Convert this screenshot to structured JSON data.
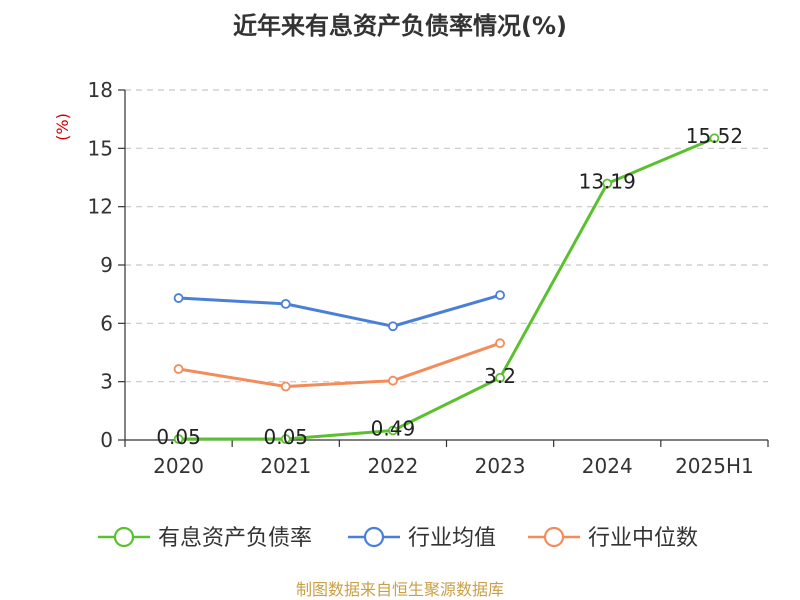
{
  "chart_data": {
    "type": "line",
    "title": "近年来有息资产负债率情况(%)",
    "unit_label": "(%)",
    "categories": [
      "2020",
      "2021",
      "2022",
      "2023",
      "2024",
      "2025H1"
    ],
    "ylim": [
      0,
      18
    ],
    "yticks": [
      "0",
      "3",
      "6",
      "9",
      "12",
      "15",
      "18"
    ],
    "grid": true,
    "legend_position": "bottom",
    "series": [
      {
        "name": "有息资产负债率",
        "color": "#5ac12e",
        "values": [
          0.05,
          0.05,
          0.49,
          3.2,
          13.19,
          15.52
        ],
        "labels": [
          "0.05",
          "0.05",
          "0.49",
          "3.2",
          "13.19",
          "15.52"
        ]
      },
      {
        "name": "行业均值",
        "color": "#4a7fd8",
        "values": [
          7.3,
          7.0,
          5.85,
          7.45,
          null,
          null
        ]
      },
      {
        "name": "行业中位数",
        "color": "#f28c5a",
        "values": [
          3.65,
          2.75,
          3.05,
          4.98,
          null,
          null
        ]
      }
    ]
  },
  "source": "制图数据来自恒生聚源数据库"
}
